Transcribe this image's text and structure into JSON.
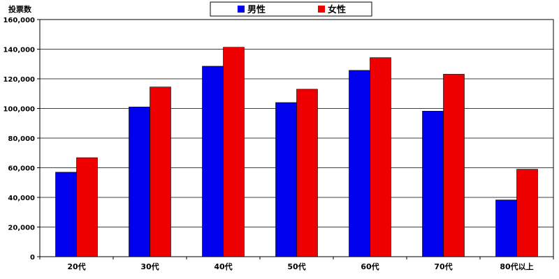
{
  "chart_data": {
    "type": "bar",
    "title": "",
    "xlabel": "",
    "ylabel": "投票数",
    "categories": [
      "20代",
      "30代",
      "40代",
      "50代",
      "60代",
      "70代",
      "80代以上"
    ],
    "series": [
      {
        "name": "男性",
        "color": "#0000ee",
        "values": [
          57000,
          101000,
          128500,
          104000,
          125700,
          98200,
          38300
        ]
      },
      {
        "name": "女性",
        "color": "#ee0000",
        "values": [
          66800,
          114500,
          141300,
          113000,
          134300,
          123100,
          59000
        ]
      }
    ],
    "ylim": [
      0,
      160000
    ],
    "yticks": [
      0,
      20000,
      40000,
      60000,
      80000,
      100000,
      120000,
      140000,
      160000
    ],
    "ytick_labels": [
      "0",
      "20,000",
      "40,000",
      "60,000",
      "80,000",
      "100,000",
      "120,000",
      "140,000",
      "160,000"
    ],
    "grid": true,
    "legend": "top-center"
  }
}
